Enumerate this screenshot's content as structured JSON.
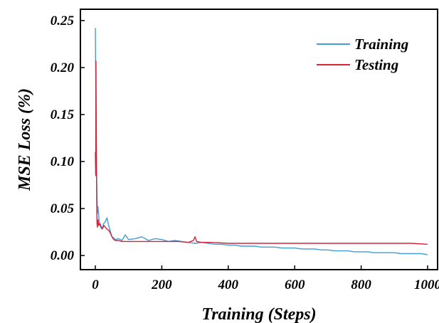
{
  "chart_data": {
    "type": "line",
    "title": "",
    "xlabel": "Training (Steps)",
    "ylabel": "MSE Loss (%)",
    "xlim": [
      -45,
      1030
    ],
    "ylim": [
      -0.015,
      0.262
    ],
    "x_ticks": [
      0,
      200,
      400,
      600,
      800,
      1000
    ],
    "x_tick_labels": [
      "0",
      "200",
      "400",
      "600",
      "800",
      "1000"
    ],
    "y_ticks": [
      0.0,
      0.05,
      0.1,
      0.15,
      0.2,
      0.25
    ],
    "y_tick_labels": [
      "0.00",
      "0.05",
      "0.10",
      "0.15",
      "0.20",
      "0.25"
    ],
    "grid": false,
    "legend_position": "top-right",
    "series": [
      {
        "name": "Training",
        "color": "#3f9fd6",
        "x": [
          0,
          2,
          4,
          6,
          8,
          12,
          16,
          20,
          25,
          30,
          35,
          40,
          45,
          50,
          55,
          60,
          70,
          80,
          90,
          100,
          120,
          140,
          160,
          180,
          200,
          220,
          240,
          260,
          280,
          300,
          320,
          340,
          360,
          380,
          400,
          420,
          440,
          460,
          480,
          500,
          520,
          540,
          560,
          580,
          600,
          620,
          640,
          660,
          680,
          700,
          720,
          740,
          760,
          780,
          800,
          820,
          840,
          860,
          880,
          900,
          920,
          940,
          960,
          980,
          1000
        ],
        "y": [
          0.242,
          0.15,
          0.08,
          0.045,
          0.052,
          0.035,
          0.03,
          0.028,
          0.034,
          0.036,
          0.04,
          0.032,
          0.026,
          0.02,
          0.019,
          0.017,
          0.018,
          0.016,
          0.022,
          0.017,
          0.018,
          0.02,
          0.016,
          0.018,
          0.017,
          0.015,
          0.016,
          0.015,
          0.014,
          0.013,
          0.014,
          0.013,
          0.012,
          0.012,
          0.011,
          0.011,
          0.01,
          0.01,
          0.01,
          0.009,
          0.009,
          0.009,
          0.008,
          0.008,
          0.008,
          0.007,
          0.007,
          0.007,
          0.006,
          0.006,
          0.005,
          0.005,
          0.005,
          0.004,
          0.004,
          0.004,
          0.003,
          0.003,
          0.003,
          0.003,
          0.002,
          0.002,
          0.002,
          0.002,
          0.001
        ]
      },
      {
        "name": "Testing",
        "color": "#d6233a",
        "x": [
          0,
          1,
          2,
          3,
          4,
          5,
          6,
          8,
          10,
          14,
          18,
          22,
          26,
          30,
          35,
          40,
          45,
          50,
          55,
          60,
          70,
          80,
          100,
          150,
          200,
          250,
          280,
          295,
          300,
          305,
          320,
          350,
          400,
          450,
          500,
          550,
          600,
          650,
          700,
          750,
          800,
          850,
          900,
          950,
          1000
        ],
        "y": [
          0.11,
          0.085,
          0.207,
          0.12,
          0.06,
          0.035,
          0.03,
          0.038,
          0.032,
          0.034,
          0.03,
          0.029,
          0.032,
          0.03,
          0.028,
          0.027,
          0.024,
          0.02,
          0.017,
          0.016,
          0.016,
          0.015,
          0.015,
          0.015,
          0.015,
          0.015,
          0.014,
          0.016,
          0.02,
          0.015,
          0.014,
          0.014,
          0.013,
          0.013,
          0.013,
          0.013,
          0.013,
          0.013,
          0.013,
          0.013,
          0.013,
          0.013,
          0.013,
          0.013,
          0.012
        ]
      }
    ]
  }
}
